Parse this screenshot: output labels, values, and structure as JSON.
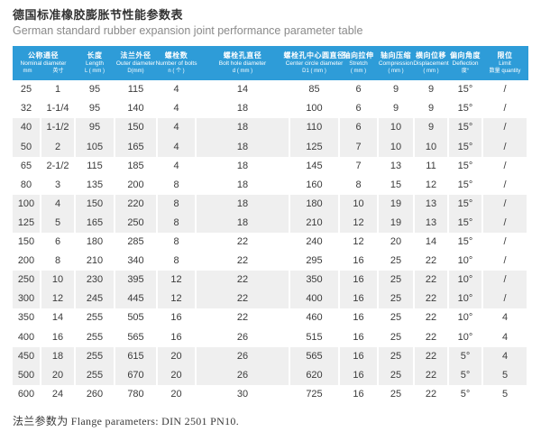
{
  "page": {
    "title_zh": "德国标准橡胶膨胀节性能参数表",
    "title_en": "German standard rubber expansion joint performance parameter table",
    "footer": "法兰参数为 Flange parameters: DIN 2501 PN10."
  },
  "colors": {
    "header_bg": "#2e9cd8",
    "stripe_row_bg": "#efefef",
    "header_text": "#ffffff",
    "body_text": "#3b3b3b",
    "title_en_text": "#8a8a8a"
  },
  "table": {
    "headers": [
      {
        "zh": "公称通径",
        "en": "Nominal diameter",
        "sub_left": "mm",
        "sub_right": "英寸",
        "span": 2
      },
      {
        "zh": "长度",
        "en": "Length",
        "sub": "L ( mm )"
      },
      {
        "zh": "法兰外径",
        "en": "Outer diameter",
        "sub": "D(mm)"
      },
      {
        "zh": "螺栓数",
        "en": "Number of bolts",
        "sub": "n ( 个 )"
      },
      {
        "zh": "螺栓孔直径",
        "en": "Bolt hole diameter",
        "sub": "d ( mm )"
      },
      {
        "zh": "螺栓孔中心圆直径",
        "en": "Center circle diameter",
        "sub": "D1 ( mm )"
      },
      {
        "zh": "轴向拉伸",
        "en": "Stretch",
        "sub": "( mm )"
      },
      {
        "zh": "轴向压缩",
        "en": "Compression",
        "sub": "( mm )"
      },
      {
        "zh": "横向位移",
        "en": "Displacement",
        "sub": "( mm )"
      },
      {
        "zh": "偏向角度",
        "en": "Deflection",
        "sub": "度°"
      },
      {
        "zh": "限位",
        "en": "Limit",
        "sub": "数量 quantity"
      }
    ],
    "rows": [
      [
        "25",
        "1",
        "95",
        "115",
        "4",
        "14",
        "85",
        "6",
        "9",
        "9",
        "15°",
        "/"
      ],
      [
        "32",
        "1-1/4",
        "95",
        "140",
        "4",
        "18",
        "100",
        "6",
        "9",
        "9",
        "15°",
        "/"
      ],
      [
        "40",
        "1-1/2",
        "95",
        "150",
        "4",
        "18",
        "110",
        "6",
        "10",
        "9",
        "15°",
        "/"
      ],
      [
        "50",
        "2",
        "105",
        "165",
        "4",
        "18",
        "125",
        "7",
        "10",
        "10",
        "15°",
        "/"
      ],
      [
        "65",
        "2-1/2",
        "115",
        "185",
        "4",
        "18",
        "145",
        "7",
        "13",
        "11",
        "15°",
        "/"
      ],
      [
        "80",
        "3",
        "135",
        "200",
        "8",
        "18",
        "160",
        "8",
        "15",
        "12",
        "15°",
        "/"
      ],
      [
        "100",
        "4",
        "150",
        "220",
        "8",
        "18",
        "180",
        "10",
        "19",
        "13",
        "15°",
        "/"
      ],
      [
        "125",
        "5",
        "165",
        "250",
        "8",
        "18",
        "210",
        "12",
        "19",
        "13",
        "15°",
        "/"
      ],
      [
        "150",
        "6",
        "180",
        "285",
        "8",
        "22",
        "240",
        "12",
        "20",
        "14",
        "15°",
        "/"
      ],
      [
        "200",
        "8",
        "210",
        "340",
        "8",
        "22",
        "295",
        "16",
        "25",
        "22",
        "10°",
        "/"
      ],
      [
        "250",
        "10",
        "230",
        "395",
        "12",
        "22",
        "350",
        "16",
        "25",
        "22",
        "10°",
        "/"
      ],
      [
        "300",
        "12",
        "245",
        "445",
        "12",
        "22",
        "400",
        "16",
        "25",
        "22",
        "10°",
        "/"
      ],
      [
        "350",
        "14",
        "255",
        "505",
        "16",
        "22",
        "460",
        "16",
        "25",
        "22",
        "10°",
        "4"
      ],
      [
        "400",
        "16",
        "255",
        "565",
        "16",
        "26",
        "515",
        "16",
        "25",
        "22",
        "10°",
        "4"
      ],
      [
        "450",
        "18",
        "255",
        "615",
        "20",
        "26",
        "565",
        "16",
        "25",
        "22",
        "5°",
        "4"
      ],
      [
        "500",
        "20",
        "255",
        "670",
        "20",
        "26",
        "620",
        "16",
        "25",
        "22",
        "5°",
        "5"
      ],
      [
        "600",
        "24",
        "260",
        "780",
        "20",
        "30",
        "725",
        "16",
        "25",
        "22",
        "5°",
        "5"
      ]
    ]
  }
}
